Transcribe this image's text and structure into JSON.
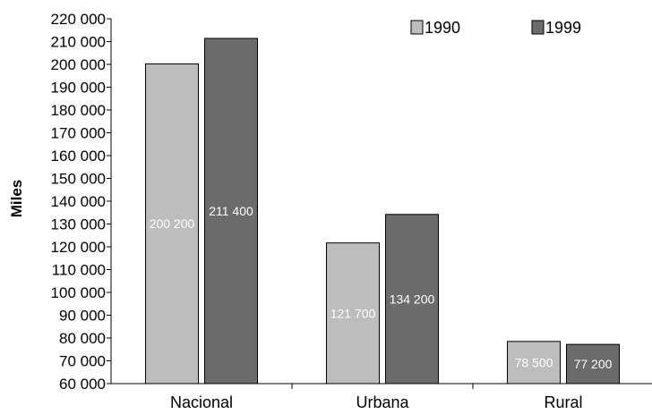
{
  "chart_data": {
    "type": "bar",
    "ylabel": "Miles",
    "ylim": [
      60000,
      220000
    ],
    "ytick_step": 10000,
    "yticks": [
      "60 000",
      "70 000",
      "80 000",
      "90 000",
      "100 000",
      "110 000",
      "120 000",
      "130 000",
      "140 000",
      "150 000",
      "160 000",
      "170 000",
      "180 000",
      "190 000",
      "200 000",
      "210 000",
      "220 000"
    ],
    "categories": [
      "Nacional",
      "Urbana",
      "Rural"
    ],
    "series": [
      {
        "name": "1990",
        "values": [
          200200,
          121700,
          78500
        ],
        "labels": [
          "200 200",
          "121 700",
          "78 500"
        ],
        "color": "#bdbdbd"
      },
      {
        "name": "1999",
        "values": [
          211400,
          134200,
          77200
        ],
        "labels": [
          "211 400",
          "134 200",
          "77 200"
        ],
        "color": "#6b6b6b"
      }
    ],
    "legend_position": "top-right",
    "grid": false
  }
}
